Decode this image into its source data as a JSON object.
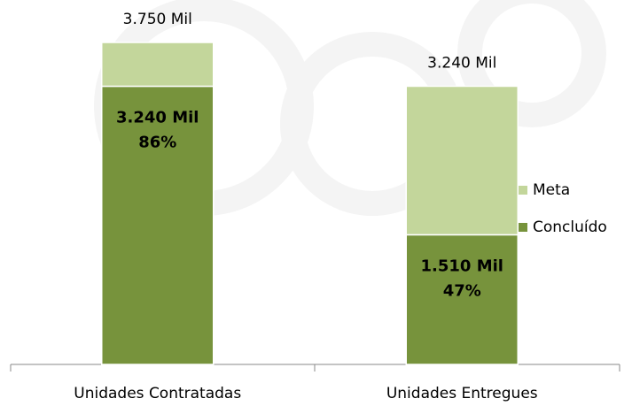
{
  "chart_data": {
    "type": "stacked_bar",
    "categories": [
      "Unidades Contratadas",
      "Unidades Entregues"
    ],
    "series": [
      {
        "name": "Concluído",
        "color": "#77933c",
        "values": [
          3240,
          1510
        ],
        "value_labels": [
          "3.240 Mil",
          "1.510 Mil"
        ]
      },
      {
        "name": "Meta",
        "color": "#c3d69b",
        "values": [
          510,
          1730
        ]
      }
    ],
    "shares": [
      86,
      47
    ],
    "share_labels": [
      "86%",
      "47%"
    ],
    "totals": [
      3750,
      3240
    ],
    "total_labels": [
      "3.750 Mil",
      "3.240 Mil"
    ],
    "legend": "right"
  }
}
